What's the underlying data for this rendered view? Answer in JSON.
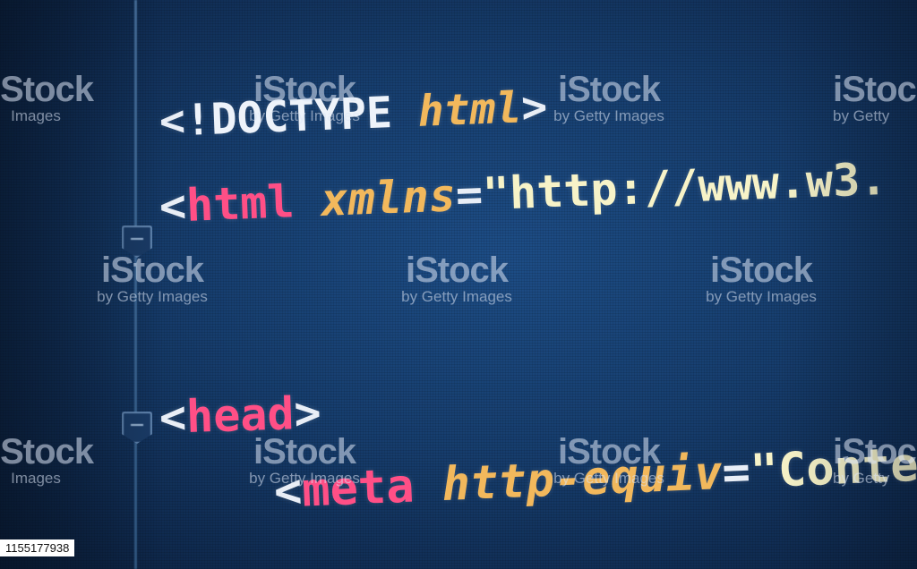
{
  "code_lines": [
    {
      "parts": [
        "<",
        "!DOCTYPE",
        " ",
        "html",
        ">"
      ]
    },
    {
      "parts": [
        "<",
        "html",
        " ",
        "xmlns",
        "=",
        "\"http://www.w3."
      ]
    },
    {
      "parts": [
        "<",
        "head",
        ">"
      ]
    },
    {
      "parts": [
        "<",
        "meta",
        " ",
        "http-equiv",
        "=",
        "\"Conte"
      ]
    }
  ],
  "watermark": {
    "big": "iStock",
    "small": "by Getty Images",
    "small_cut": "Images",
    "small_cut2": "by Getty"
  },
  "stock_id": "1155177938",
  "colors": {
    "tag": "#ff4f86",
    "attribute": "#f2b85c",
    "string": "#f7f3c8",
    "bracket": "#e9eef6",
    "background": "#163d6d"
  }
}
